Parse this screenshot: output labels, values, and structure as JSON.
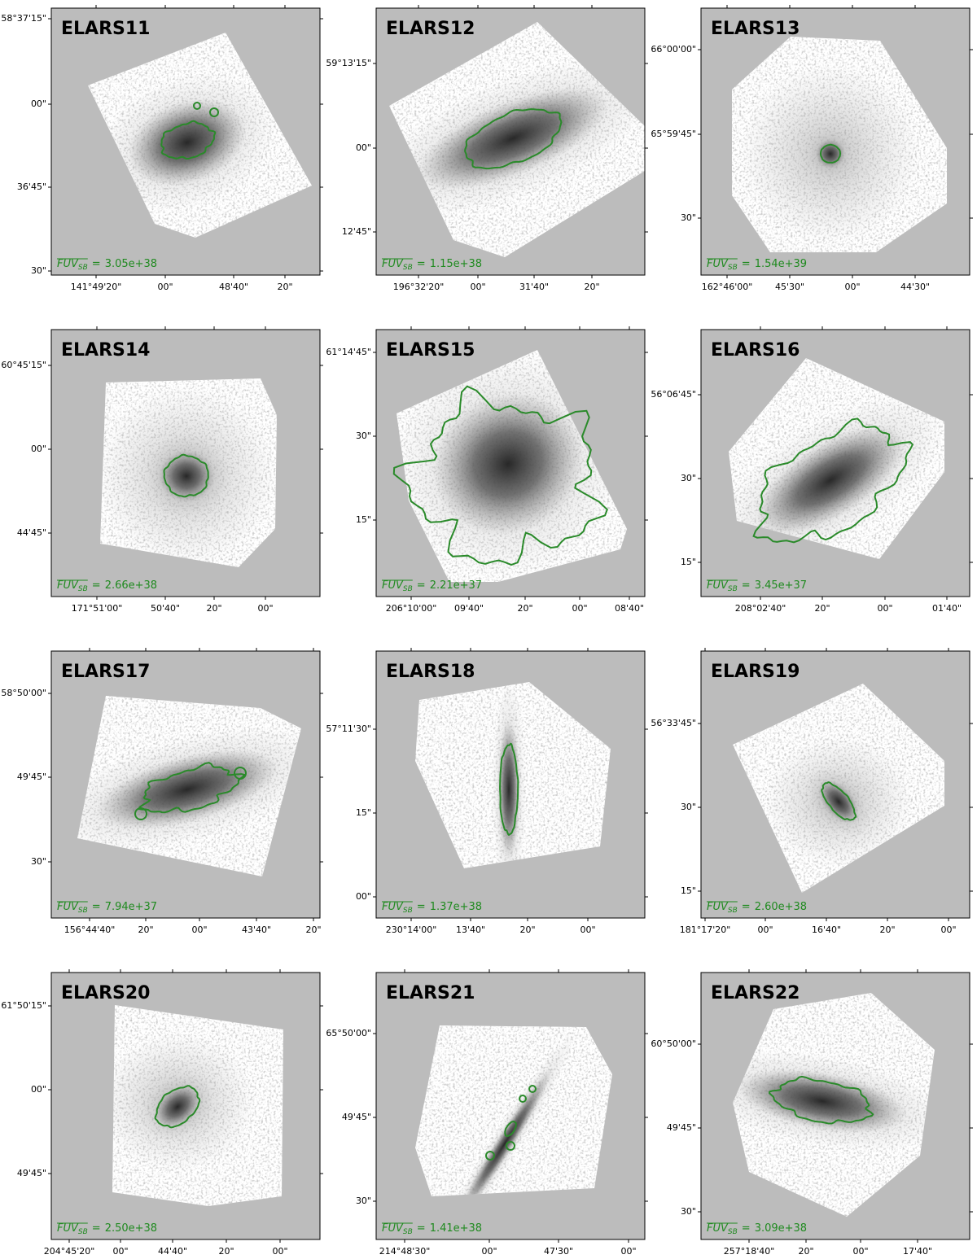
{
  "panels": [
    {
      "title": "ELARS11",
      "y_ticks": [
        "58°37'15\"",
        "00\"",
        "36'45\"",
        "30\""
      ],
      "x_ticks": [
        "141°49'20\"",
        "00\"",
        "48'40\"",
        "20\""
      ],
      "annotation": {
        "symbol": "FUV",
        "subscript": "SB",
        "relation": "=",
        "value": "3.05e+38"
      }
    },
    {
      "title": "ELARS12",
      "y_ticks": [
        "59°13'15\"",
        "00\"",
        "12'45\""
      ],
      "x_ticks": [
        "196°32'20\"",
        "00\"",
        "31'40\"",
        "20\""
      ],
      "annotation": {
        "symbol": "FUV",
        "subscript": "SB",
        "relation": "=",
        "value": "1.15e+38"
      }
    },
    {
      "title": "ELARS13",
      "y_ticks": [
        "66°00'00\"",
        "65°59'45\"",
        "30\""
      ],
      "x_ticks": [
        "162°46'00\"",
        "45'30\"",
        "00\"",
        "44'30\""
      ],
      "annotation": {
        "symbol": "FUV",
        "subscript": "SB",
        "relation": "=",
        "value": "1.54e+39"
      }
    },
    {
      "title": "ELARS14",
      "y_ticks": [
        "60°45'15\"",
        "00\"",
        "44'45\""
      ],
      "x_ticks": [
        "171°51'00\"",
        "50'40\"",
        "20\"",
        "00\""
      ],
      "annotation": {
        "symbol": "FUV",
        "subscript": "SB",
        "relation": "=",
        "value": "2.66e+38"
      }
    },
    {
      "title": "ELARS15",
      "y_ticks": [
        "61°14'45\"",
        "30\"",
        "15\""
      ],
      "x_ticks": [
        "206°10'00\"",
        "09'40\"",
        "20\"",
        "00\"",
        "08'40\""
      ],
      "annotation": {
        "symbol": "FUV",
        "subscript": "SB",
        "relation": "=",
        "value": "2.21e+37"
      }
    },
    {
      "title": "ELARS16",
      "y_ticks": [
        "56°06'45\"",
        "30\"",
        "15\""
      ],
      "x_ticks": [
        "208°02'40\"",
        "20\"",
        "00\"",
        "01'40\""
      ],
      "annotation": {
        "symbol": "FUV",
        "subscript": "SB",
        "relation": "=",
        "value": "3.45e+37"
      }
    },
    {
      "title": "ELARS17",
      "y_ticks": [
        "58°50'00\"",
        "49'45\"",
        "30\""
      ],
      "x_ticks": [
        "156°44'40\"",
        "20\"",
        "00\"",
        "43'40\"",
        "20\""
      ],
      "annotation": {
        "symbol": "FUV",
        "subscript": "SB",
        "relation": "=",
        "value": "7.94e+37"
      }
    },
    {
      "title": "ELARS18",
      "y_ticks": [
        "57°11'30\"",
        "15\"",
        "00\""
      ],
      "x_ticks": [
        "230°14'00\"",
        "13'40\"",
        "20\"",
        "00\""
      ],
      "annotation": {
        "symbol": "FUV",
        "subscript": "SB",
        "relation": "=",
        "value": "1.37e+38"
      }
    },
    {
      "title": "ELARS19",
      "y_ticks": [
        "56°33'45\"",
        "30\"",
        "15\""
      ],
      "x_ticks": [
        "181°17'20\"",
        "00\"",
        "16'40\"",
        "20\"",
        "00\""
      ],
      "annotation": {
        "symbol": "FUV",
        "subscript": "SB",
        "relation": "=",
        "value": "2.60e+38"
      }
    },
    {
      "title": "ELARS20",
      "y_ticks": [
        "61°50'15\"",
        "00\"",
        "49'45\""
      ],
      "x_ticks": [
        "204°45'20\"",
        "00\"",
        "44'40\"",
        "20\"",
        "00\""
      ],
      "annotation": {
        "symbol": "FUV",
        "subscript": "SB",
        "relation": "=",
        "value": "2.50e+38"
      }
    },
    {
      "title": "ELARS21",
      "y_ticks": [
        "65°50'00\"",
        "49'45\"",
        "30\""
      ],
      "x_ticks": [
        "214°48'30\"",
        "00\"",
        "47'30\"",
        "00\""
      ],
      "annotation": {
        "symbol": "FUV",
        "subscript": "SB",
        "relation": "=",
        "value": "1.41e+38"
      }
    },
    {
      "title": "ELARS22",
      "y_ticks": [
        "60°50'00\"",
        "49'45\"",
        "30\""
      ],
      "x_ticks": [
        "257°18'40\"",
        "20\"",
        "00\"",
        "17'40\""
      ],
      "annotation": {
        "symbol": "FUV",
        "subscript": "SB",
        "relation": "=",
        "value": "3.09e+38"
      }
    }
  ]
}
